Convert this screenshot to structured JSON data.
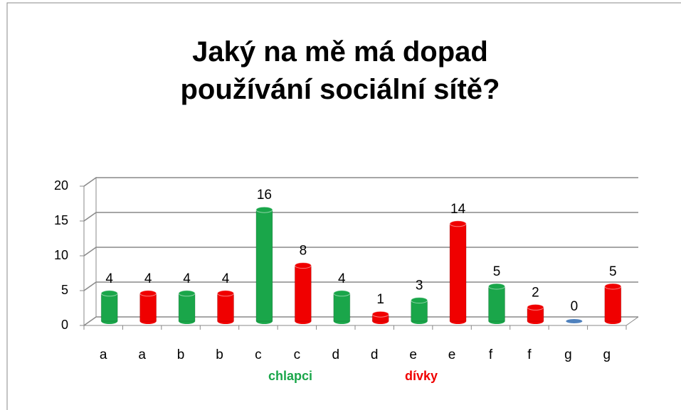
{
  "chart_data": {
    "type": "bar",
    "title": "Jaký na mě má dopad používání sociální sítě?",
    "categories": [
      "a",
      "a",
      "b",
      "b",
      "c",
      "c",
      "d",
      "d",
      "e",
      "e",
      "f",
      "f",
      "g",
      "g"
    ],
    "values": [
      4,
      4,
      4,
      4,
      16,
      8,
      4,
      1,
      3,
      14,
      5,
      2,
      0,
      5
    ],
    "colors": [
      "#1aa64a",
      "#f00000",
      "#1aa64a",
      "#f00000",
      "#1aa64a",
      "#f00000",
      "#1aa64a",
      "#f00000",
      "#1aa64a",
      "#f00000",
      "#1aa64a",
      "#f00000",
      "#4f81bd",
      "#f00000"
    ],
    "ylim": [
      0,
      20
    ],
    "yticks": [
      0,
      5,
      10,
      15,
      20
    ],
    "grid": true,
    "legend": [
      {
        "name": "chlapci",
        "color": "#1aa64a"
      },
      {
        "name": "dívky",
        "color": "#f00000"
      }
    ]
  }
}
